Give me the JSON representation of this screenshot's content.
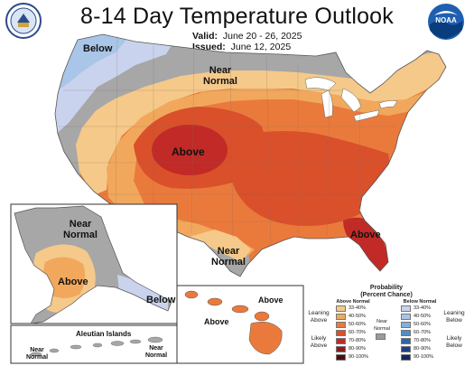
{
  "title": "8-14 Day Temperature Outlook",
  "valid_label": "Valid:",
  "valid_value": "June 20 - 26, 2025",
  "issued_label": "Issued:",
  "issued_value": "June 12, 2025",
  "map_labels": {
    "below_nw": "Below",
    "near_normal_north": "Near Normal",
    "above_central": "Above",
    "above_florida": "Above",
    "near_normal_tx": "Near Normal",
    "alaska_near_normal": "Near Normal",
    "alaska_above": "Above",
    "alaska_below": "Below",
    "hawaii_above_1": "Above",
    "hawaii_above_2": "Above",
    "aleutian_title": "Aleutian Islands",
    "aleutian_near_normal_1": "Near Normal",
    "aleutian_near_normal_2": "Near Normal"
  },
  "legend": {
    "title": "Probability",
    "subtitle": "(Percent Chance)",
    "above_header": "Above Normal",
    "below_header": "Below Normal",
    "leaning_above": "Leaning Above",
    "likely_above": "Likely Above",
    "near_normal": "Near Normal",
    "leaning_below": "Leaning Below",
    "likely_below": "Likely Below",
    "above_bins": [
      {
        "label": "33-40%",
        "color": "#f5c98a"
      },
      {
        "label": "40-50%",
        "color": "#f1a85c"
      },
      {
        "label": "50-60%",
        "color": "#ea7a3c"
      },
      {
        "label": "60-70%",
        "color": "#d9502b"
      },
      {
        "label": "70-80%",
        "color": "#c12a26"
      },
      {
        "label": "80-90%",
        "color": "#8e1b1b"
      },
      {
        "label": "90-100%",
        "color": "#4e0d0d"
      }
    ],
    "below_bins": [
      {
        "label": "33-40%",
        "color": "#c9d3ee"
      },
      {
        "label": "40-50%",
        "color": "#a9c5e8"
      },
      {
        "label": "50-60%",
        "color": "#7fb0de"
      },
      {
        "label": "60-70%",
        "color": "#4e8ec9"
      },
      {
        "label": "70-80%",
        "color": "#2c66ad"
      },
      {
        "label": "80-90%",
        "color": "#1d3f86"
      },
      {
        "label": "90-100%",
        "color": "#14265a"
      }
    ],
    "near_normal_color": "#9b9b9b"
  },
  "colors": {
    "near_normal": "#a7a7a7",
    "leaning_above": "#f5c98a",
    "above_40_50": "#f1a85c",
    "above_50_60": "#ea7a3c",
    "above_60_70": "#d9502b",
    "above_70_80": "#c12a26",
    "below_33_40": "#c9d3ee",
    "below_40_50": "#a9c5e8"
  },
  "icons": {
    "left_logo": "commerce-seal-icon",
    "right_logo": "noaa-logo-icon"
  }
}
